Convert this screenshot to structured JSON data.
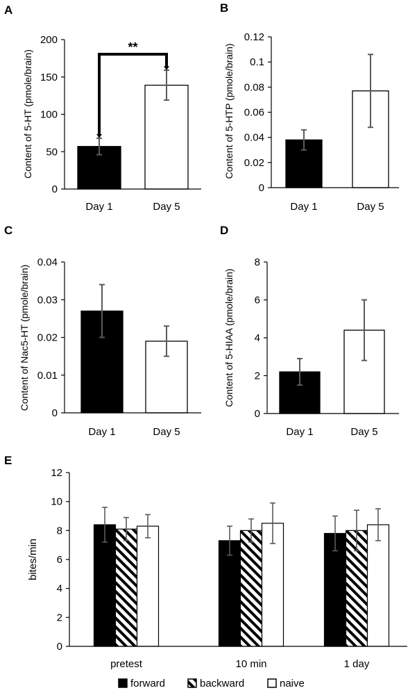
{
  "figure": {
    "legend": [
      "forward",
      "backward",
      "naive"
    ]
  },
  "chart_data": [
    {
      "panel": "A",
      "type": "bar",
      "categories": [
        "Day 1",
        "Day 5"
      ],
      "values": [
        57,
        139
      ],
      "errors": [
        11,
        20
      ],
      "fills": [
        "black",
        "white"
      ],
      "ylabel": "Content of 5-HT (pmole/brain)",
      "ylim": [
        0,
        200
      ],
      "yticks": [
        "0",
        "50",
        "100",
        "150",
        "200"
      ],
      "annotation": "**"
    },
    {
      "panel": "B",
      "type": "bar",
      "categories": [
        "Day 1",
        "Day 5"
      ],
      "values": [
        0.038,
        0.077
      ],
      "errors": [
        0.008,
        0.029
      ],
      "fills": [
        "black",
        "white"
      ],
      "ylabel": "Content of 5-HTP (pmole/brain)",
      "ylim": [
        0,
        0.12
      ],
      "yticks": [
        "0",
        "0.02",
        "0.04",
        "0.06",
        "0.08",
        "0.1",
        "0.12"
      ]
    },
    {
      "panel": "C",
      "type": "bar",
      "categories": [
        "Day 1",
        "Day 5"
      ],
      "values": [
        0.027,
        0.019
      ],
      "errors": [
        0.007,
        0.004
      ],
      "fills": [
        "black",
        "white"
      ],
      "ylabel": "Content of Nac5-HT (pmole/brain)",
      "ylim": [
        0,
        0.04
      ],
      "yticks": [
        "0",
        "0.01",
        "0.02",
        "0.03",
        "0.04"
      ]
    },
    {
      "panel": "D",
      "type": "bar",
      "categories": [
        "Day 1",
        "Day 5"
      ],
      "values": [
        2.2,
        4.4
      ],
      "errors": [
        0.7,
        1.6
      ],
      "fills": [
        "black",
        "white"
      ],
      "ylabel": "Content of 5-HIAA (pmole/brain)",
      "ylim": [
        0,
        8
      ],
      "yticks": [
        "0",
        "2",
        "4",
        "6",
        "8"
      ]
    },
    {
      "panel": "E",
      "type": "bar",
      "categories": [
        "pretest",
        "10 min",
        "1 day"
      ],
      "series": [
        {
          "name": "forward",
          "values": [
            8.4,
            7.3,
            7.8
          ],
          "errors": [
            1.2,
            1.0,
            1.2
          ]
        },
        {
          "name": "backward",
          "values": [
            8.1,
            8.0,
            8.0
          ],
          "errors": [
            0.8,
            0.8,
            1.4
          ]
        },
        {
          "name": "naive",
          "values": [
            8.3,
            8.5,
            8.4
          ],
          "errors": [
            0.8,
            1.4,
            1.1
          ]
        }
      ],
      "ylabel": "bites/min",
      "ylim": [
        0,
        12
      ],
      "yticks": [
        "0",
        "2",
        "4",
        "6",
        "8",
        "10",
        "12"
      ]
    }
  ]
}
